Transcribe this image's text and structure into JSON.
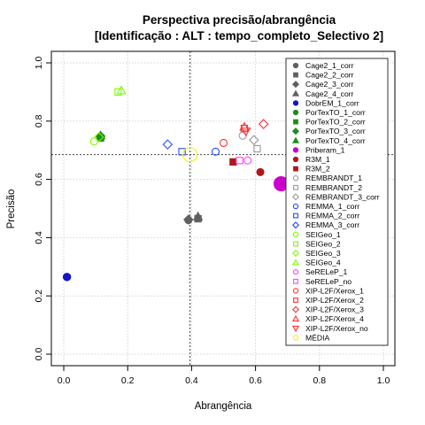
{
  "chart_data": {
    "type": "scatter",
    "title": "Perspectiva precisão/abrangência",
    "subtitle": "[Identificação : ALT : tempo_completo_Selectivo 2]",
    "xlabel": "Abrangência",
    "ylabel": "Precisão",
    "xlim": [
      0,
      1
    ],
    "ylim": [
      0,
      1
    ],
    "xticks": [
      "0.0",
      "0.2",
      "0.4",
      "0.6",
      "0.8",
      "1.0"
    ],
    "yticks": [
      "0.0",
      "0.2",
      "0.4",
      "0.6",
      "0.8",
      "1.0"
    ],
    "grid": true,
    "legend_position": "right",
    "reference_lines": {
      "x": 0.395,
      "y": 0.685
    },
    "series": [
      {
        "name": "Cage2_1_corr",
        "color": "#606060",
        "shape": "circle",
        "filled": true,
        "points": [
          [
            0.39,
            0.46
          ]
        ]
      },
      {
        "name": "Cage2_2_corr",
        "color": "#606060",
        "shape": "square",
        "filled": true,
        "points": [
          [
            0.42,
            0.465
          ]
        ]
      },
      {
        "name": "Cage2_3_corr",
        "color": "#606060",
        "shape": "diamond",
        "filled": true,
        "points": [
          [
            0.39,
            0.462
          ]
        ]
      },
      {
        "name": "Cage2_4_corr",
        "color": "#606060",
        "shape": "triangle",
        "filled": true,
        "points": [
          [
            0.42,
            0.472
          ]
        ]
      },
      {
        "name": "DobrEM_1_corr",
        "color": "#1414c8",
        "shape": "circle",
        "filled": true,
        "points": [
          [
            0.01,
            0.265
          ]
        ]
      },
      {
        "name": "PorTexTO_1_corr",
        "color": "#1e8c1e",
        "shape": "circle",
        "filled": true,
        "points": [
          [
            0.115,
            0.745
          ]
        ]
      },
      {
        "name": "PorTexTO_2_corr",
        "color": "#1e8c1e",
        "shape": "square",
        "filled": true,
        "points": [
          [
            0.115,
            0.742
          ]
        ]
      },
      {
        "name": "PorTexTO_3_corr",
        "color": "#1e8c1e",
        "shape": "diamond",
        "filled": true,
        "points": [
          [
            0.115,
            0.748
          ]
        ]
      },
      {
        "name": "PorTexTO_4_corr",
        "color": "#1e8c1e",
        "shape": "triangle",
        "filled": true,
        "points": [
          [
            0.115,
            0.75
          ]
        ]
      },
      {
        "name": "Priberam_1",
        "color": "#cc00cc",
        "shape": "circle",
        "filled": true,
        "points": [
          [
            0.68,
            0.585
          ]
        ]
      },
      {
        "name": "R3M_1",
        "color": "#b01818",
        "shape": "circle",
        "filled": true,
        "points": [
          [
            0.615,
            0.625
          ]
        ]
      },
      {
        "name": "R3M_2",
        "color": "#b01818",
        "shape": "square",
        "filled": true,
        "points": [
          [
            0.53,
            0.66
          ]
        ]
      },
      {
        "name": "REMBRANDT_1",
        "color": "#9a9a9a",
        "shape": "circle",
        "filled": false,
        "points": [
          [
            0.56,
            0.75
          ]
        ]
      },
      {
        "name": "REMBRANDT_2",
        "color": "#9a9a9a",
        "shape": "square",
        "filled": false,
        "points": [
          [
            0.605,
            0.705
          ]
        ]
      },
      {
        "name": "REMBRANDT_3_corr",
        "color": "#9a9a9a",
        "shape": "diamond",
        "filled": false,
        "points": [
          [
            0.595,
            0.735
          ]
        ]
      },
      {
        "name": "REMMA_1_corr",
        "color": "#1e50ff",
        "shape": "circle",
        "filled": false,
        "points": [
          [
            0.475,
            0.695
          ]
        ]
      },
      {
        "name": "REMMA_2_corr",
        "color": "#1e50ff",
        "shape": "square",
        "filled": false,
        "points": [
          [
            0.37,
            0.695
          ]
        ]
      },
      {
        "name": "REMMA_3_corr",
        "color": "#1e50ff",
        "shape": "diamond",
        "filled": false,
        "points": [
          [
            0.325,
            0.72
          ]
        ]
      },
      {
        "name": "SEIGeo_1",
        "color": "#7cfc00",
        "shape": "circle",
        "filled": false,
        "points": [
          [
            0.095,
            0.73
          ]
        ]
      },
      {
        "name": "SEIGeo_2",
        "color": "#7cfc00",
        "shape": "square",
        "filled": false,
        "points": [
          [
            0.17,
            0.9
          ]
        ]
      },
      {
        "name": "SEIGeo_3",
        "color": "#7cfc00",
        "shape": "diamond",
        "filled": false,
        "points": [
          [
            0.11,
            0.745
          ]
        ]
      },
      {
        "name": "SEIGeo_4",
        "color": "#7cfc00",
        "shape": "triangle",
        "filled": false,
        "points": [
          [
            0.18,
            0.905
          ]
        ]
      },
      {
        "name": "SeRELeP_1",
        "color": "#ff40ff",
        "shape": "circle",
        "filled": false,
        "points": [
          [
            0.575,
            0.665
          ]
        ]
      },
      {
        "name": "SeRELeP_no",
        "color": "#ff40ff",
        "shape": "square",
        "filled": false,
        "points": [
          [
            0.55,
            0.665
          ]
        ]
      },
      {
        "name": "XIP-L2F/Xerox_1",
        "color": "#ff3030",
        "shape": "circle",
        "filled": false,
        "points": [
          [
            0.5,
            0.725
          ]
        ]
      },
      {
        "name": "XIP-L2F/Xerox_2",
        "color": "#ff3030",
        "shape": "square",
        "filled": false,
        "points": [
          [
            0.565,
            0.775
          ]
        ]
      },
      {
        "name": "XIP-L2F/Xerox_3",
        "color": "#ff3030",
        "shape": "diamond",
        "filled": false,
        "points": [
          [
            0.625,
            0.79
          ]
        ]
      },
      {
        "name": "XIP-L2F/Xerox_4",
        "color": "#ff3030",
        "shape": "triangle",
        "filled": false,
        "points": [
          [
            0.565,
            0.78
          ]
        ]
      },
      {
        "name": "XIP-L2F/Xerox_no",
        "color": "#ff3030",
        "shape": "triangle-down",
        "filled": false,
        "points": [
          [
            0.57,
            0.765
          ]
        ]
      },
      {
        "name": "MÉDIA",
        "color": "#ffee00",
        "shape": "circle",
        "filled": false,
        "points": [
          [
            0.395,
            0.685
          ]
        ]
      }
    ]
  }
}
